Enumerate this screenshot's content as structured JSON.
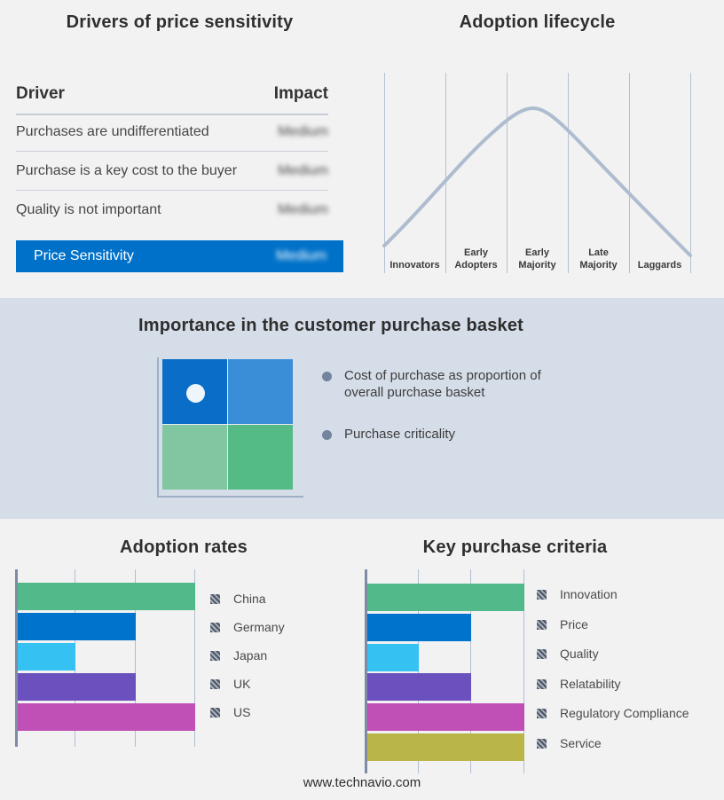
{
  "page": {
    "footer": "www.technavio.com",
    "background": "#f2f2f3",
    "band_background": "#d5dde8"
  },
  "drivers_panel": {
    "title": "Drivers of price sensitivity",
    "columns": {
      "driver": "Driver",
      "impact": "Impact"
    },
    "rows": [
      {
        "driver": "Purchases are undifferentiated",
        "impact": "Medium"
      },
      {
        "driver": "Purchase is a key cost to the buyer",
        "impact": "Medium"
      },
      {
        "driver": "Quality is not important",
        "impact": "Medium"
      }
    ],
    "summary_row": {
      "label": "Price Sensitivity",
      "impact": "Medium",
      "background": "#0071c9"
    }
  },
  "lifecycle_panel": {
    "title": "Adoption lifecycle",
    "curve_color": "#aebccf",
    "stages": [
      {
        "line1": "",
        "line2": "Innovators"
      },
      {
        "line1": "Early",
        "line2": "Adopters"
      },
      {
        "line1": "Early",
        "line2": "Majority"
      },
      {
        "line1": "Late",
        "line2": "Majority"
      },
      {
        "line1": "",
        "line2": "Laggards"
      }
    ]
  },
  "basket_panel": {
    "title": "Importance in the customer purchase basket",
    "matrix_colors": [
      "#0a6dc7",
      "#3a8ed8",
      "#80c6a1",
      "#54bb86"
    ],
    "dot_color": "#eef6fc",
    "bullets": [
      {
        "lines": "Cost of purchase as proportion of\noverall purchase basket"
      },
      {
        "lines": "Purchase criticality"
      }
    ]
  },
  "adoption_chart": {
    "title": "Adoption rates",
    "bars": [
      {
        "label": "China",
        "color": "#52ba8a",
        "value": 3
      },
      {
        "label": "Germany",
        "color": "#0073cd",
        "value": 2
      },
      {
        "label": "Japan",
        "color": "#35c1f2",
        "value": 1
      },
      {
        "label": "UK",
        "color": "#6b51bd",
        "value": 2
      },
      {
        "label": "US",
        "color": "#c050b6",
        "value": 3
      }
    ]
  },
  "criteria_chart": {
    "title": "Key purchase criteria",
    "bars": [
      {
        "label": "Innovation",
        "color": "#52ba8a",
        "value": 3
      },
      {
        "label": "Price",
        "color": "#0073cd",
        "value": 2
      },
      {
        "label": "Quality",
        "color": "#35c1f2",
        "value": 1
      },
      {
        "label": "Relatability",
        "color": "#6b51bd",
        "value": 2
      },
      {
        "label": "Regulatory Compliance",
        "color": "#c050b6",
        "value": 3
      },
      {
        "label": "Service",
        "color": "#b9b548",
        "value": 3
      }
    ]
  },
  "chart_data": [
    {
      "type": "table",
      "title": "Drivers of price sensitivity",
      "columns": [
        "Driver",
        "Impact"
      ],
      "rows": [
        [
          "Purchases are undifferentiated",
          "Medium"
        ],
        [
          "Purchase is a key cost to the buyer",
          "Medium"
        ],
        [
          "Quality is not important",
          "Medium"
        ],
        [
          "Price Sensitivity",
          "Medium"
        ]
      ]
    },
    {
      "type": "line",
      "title": "Adoption lifecycle",
      "categories": [
        "Innovators",
        "Early Adopters",
        "Early Majority",
        "Late Majority",
        "Laggards"
      ],
      "x_normalized": [
        0,
        0.18,
        0.36,
        0.49,
        0.56,
        0.64,
        0.8,
        1
      ],
      "y_normalized": [
        0.06,
        0.42,
        0.72,
        0.95,
        0.94,
        0.78,
        0.45,
        0.0
      ],
      "peak_stage": "Early Majority",
      "grid": "vertical stage separators only",
      "legend_position": "none"
    },
    {
      "type": "bar",
      "orientation": "horizontal",
      "title": "Adoption rates",
      "categories": [
        "China",
        "Germany",
        "Japan",
        "UK",
        "US"
      ],
      "values": [
        3,
        2,
        1,
        2,
        3
      ],
      "xlim": [
        0,
        3
      ],
      "xlabel": "",
      "ylabel": "",
      "note": "no numeric axis labels shown; values in gridline units",
      "legend_position": "right"
    },
    {
      "type": "bar",
      "orientation": "horizontal",
      "title": "Key purchase criteria",
      "categories": [
        "Innovation",
        "Price",
        "Quality",
        "Relatability",
        "Regulatory Compliance",
        "Service"
      ],
      "values": [
        3,
        2,
        1,
        2,
        3,
        3
      ],
      "xlim": [
        0,
        3
      ],
      "xlabel": "",
      "ylabel": "",
      "note": "no numeric axis labels shown; values in gridline units",
      "legend_position": "right"
    }
  ]
}
